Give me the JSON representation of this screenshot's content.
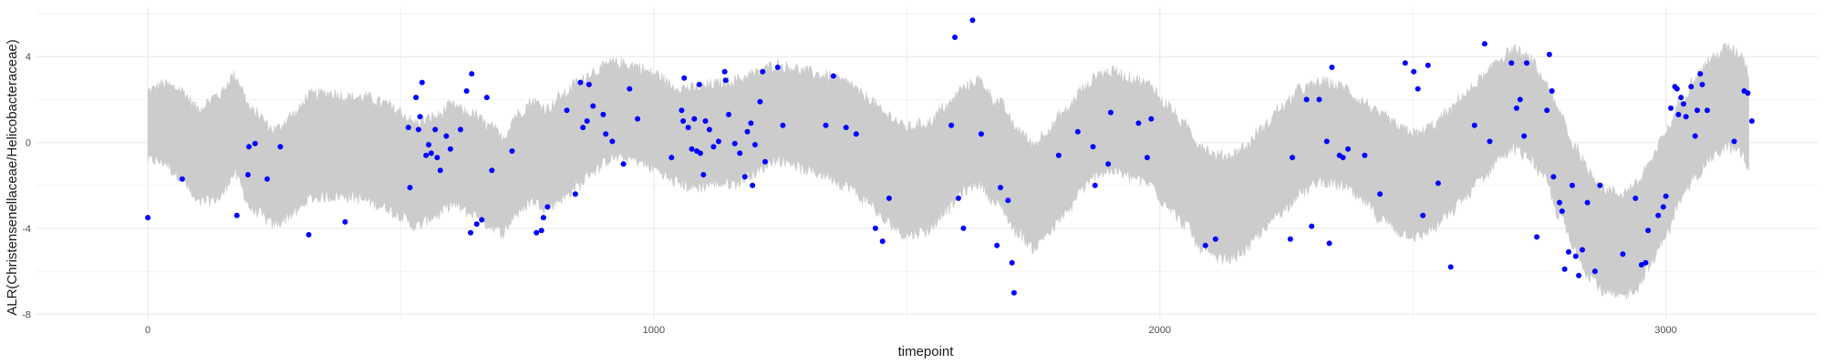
{
  "chart_data": {
    "type": "scatter",
    "title": "",
    "xlabel": "timepoint",
    "ylabel": "ALR(Christensenellaceae/Helicobacteraceae)",
    "xlim": [
      -220,
      3300
    ],
    "ylim": [
      -8.2,
      6.3
    ],
    "x_ticks": [
      0,
      1000,
      2000,
      3000
    ],
    "y_ticks": [
      -8,
      -4,
      0,
      4
    ],
    "grid": true,
    "legend": "none",
    "band": {
      "color": "#cccccc",
      "description_x": [
        0,
        30,
        60,
        100,
        140,
        170,
        210,
        250,
        290,
        320,
        360,
        400,
        430,
        470,
        490,
        530,
        570,
        600,
        640,
        680,
        700,
        730,
        760,
        790,
        820,
        850,
        880,
        920,
        960,
        1000,
        1040,
        1080,
        1120,
        1160,
        1200,
        1240,
        1270,
        1300,
        1340,
        1380,
        1420,
        1460,
        1500,
        1540,
        1580,
        1610,
        1640,
        1680,
        1720,
        1750,
        1780,
        1810,
        1850,
        1880,
        1910,
        1940,
        1980,
        2010,
        2050,
        2080,
        2110,
        2140,
        2170,
        2200,
        2240,
        2280,
        2320,
        2360,
        2400,
        2440,
        2480,
        2510,
        2540,
        2570,
        2600,
        2640,
        2670,
        2700,
        2730,
        2760,
        2790,
        2820,
        2850,
        2880,
        2910,
        2940,
        2970,
        3000,
        3030,
        3060,
        3090,
        3120,
        3150,
        3165
      ],
      "center": [
        0.8,
        0.9,
        0.5,
        -0.6,
        -0.2,
        0.8,
        -0.9,
        -1.6,
        -1.0,
        -0.2,
        -0.1,
        -0.2,
        -0.3,
        -0.6,
        -0.9,
        -1.5,
        -1.1,
        -0.6,
        -1.0,
        -1.6,
        -2.0,
        -1.0,
        -0.4,
        -0.7,
        -0.2,
        0.4,
        1.0,
        1.5,
        1.4,
        1.0,
        0.4,
        0.2,
        0.4,
        0.5,
        0.9,
        1.4,
        1.3,
        1.0,
        0.8,
        0.4,
        -0.3,
        -1.2,
        -1.8,
        -1.6,
        -0.7,
        0.1,
        0.5,
        -0.5,
        -1.8,
        -2.5,
        -1.8,
        -1.0,
        0.2,
        0.9,
        1.0,
        0.7,
        0.4,
        -0.5,
        -1.5,
        -2.5,
        -3.0,
        -3.0,
        -2.6,
        -1.8,
        -0.8,
        0.1,
        0.5,
        0.3,
        -0.4,
        -1.2,
        -1.8,
        -2.0,
        -1.6,
        -1.0,
        -0.2,
        0.7,
        1.6,
        2.0,
        1.6,
        0.6,
        -1.0,
        -2.6,
        -3.8,
        -4.6,
        -4.8,
        -4.4,
        -3.3,
        -1.9,
        -0.4,
        0.8,
        1.6,
        2.1,
        1.8,
        0.9
      ],
      "halfwidth": [
        1.6,
        1.8,
        2.0,
        2.2,
        2.4,
        2.3,
        2.3,
        2.2,
        2.3,
        2.4,
        2.4,
        2.3,
        2.4,
        2.4,
        2.4,
        2.4,
        2.3,
        2.3,
        2.3,
        2.3,
        2.2,
        2.3,
        2.3,
        2.3,
        2.4,
        2.4,
        2.3,
        2.2,
        2.2,
        2.2,
        2.2,
        2.3,
        2.3,
        2.4,
        2.3,
        2.2,
        2.2,
        2.3,
        2.3,
        2.4,
        2.4,
        2.5,
        2.5,
        2.5,
        2.4,
        2.4,
        2.4,
        2.4,
        2.4,
        2.4,
        2.4,
        2.4,
        2.3,
        2.3,
        2.3,
        2.3,
        2.3,
        2.3,
        2.3,
        2.4,
        2.4,
        2.4,
        2.4,
        2.4,
        2.4,
        2.4,
        2.3,
        2.3,
        2.3,
        2.4,
        2.4,
        2.4,
        2.4,
        2.4,
        2.4,
        2.3,
        2.3,
        2.3,
        2.3,
        2.3,
        2.4,
        2.4,
        2.4,
        2.4,
        2.4,
        2.4,
        2.4,
        2.4,
        2.3,
        2.3,
        2.3,
        2.3,
        2.3,
        2.3
      ]
    },
    "points_color": "#0000ff",
    "points": [
      [
        0,
        -3.5
      ],
      [
        68,
        -1.7
      ],
      [
        176,
        -3.4
      ],
      [
        200,
        -0.2
      ],
      [
        198,
        -1.5
      ],
      [
        212,
        -0.05
      ],
      [
        236,
        -1.7
      ],
      [
        262,
        -0.2
      ],
      [
        318,
        -4.3
      ],
      [
        390,
        -3.7
      ],
      [
        515,
        0.7
      ],
      [
        518,
        -2.1
      ],
      [
        530,
        2.1
      ],
      [
        535,
        0.6
      ],
      [
        538,
        1.2
      ],
      [
        542,
        2.8
      ],
      [
        550,
        -0.6
      ],
      [
        555,
        -0.1
      ],
      [
        560,
        -0.5
      ],
      [
        568,
        0.6
      ],
      [
        572,
        -0.7
      ],
      [
        578,
        -1.3
      ],
      [
        590,
        0.3
      ],
      [
        598,
        -0.3
      ],
      [
        618,
        0.6
      ],
      [
        630,
        2.4
      ],
      [
        638,
        -4.2
      ],
      [
        640,
        3.2
      ],
      [
        650,
        -3.8
      ],
      [
        660,
        -3.6
      ],
      [
        670,
        2.1
      ],
      [
        680,
        -1.3
      ],
      [
        720,
        -0.4
      ],
      [
        768,
        -4.2
      ],
      [
        778,
        -4.1
      ],
      [
        782,
        -3.5
      ],
      [
        790,
        -3.0
      ],
      [
        828,
        1.5
      ],
      [
        845,
        -2.4
      ],
      [
        855,
        2.8
      ],
      [
        860,
        0.7
      ],
      [
        868,
        1.0
      ],
      [
        872,
        2.7
      ],
      [
        880,
        1.7
      ],
      [
        900,
        1.3
      ],
      [
        905,
        0.4
      ],
      [
        918,
        0.05
      ],
      [
        940,
        -1.0
      ],
      [
        952,
        2.5
      ],
      [
        968,
        1.1
      ],
      [
        1035,
        -0.7
      ],
      [
        1055,
        1.5
      ],
      [
        1058,
        1.0
      ],
      [
        1060,
        3.0
      ],
      [
        1068,
        0.7
      ],
      [
        1075,
        -0.3
      ],
      [
        1080,
        1.1
      ],
      [
        1085,
        -0.4
      ],
      [
        1090,
        2.7
      ],
      [
        1092,
        -0.5
      ],
      [
        1098,
        -1.5
      ],
      [
        1102,
        1.0
      ],
      [
        1110,
        0.6
      ],
      [
        1118,
        -0.2
      ],
      [
        1128,
        0.05
      ],
      [
        1140,
        3.3
      ],
      [
        1142,
        2.9
      ],
      [
        1148,
        1.3
      ],
      [
        1160,
        -0.05
      ],
      [
        1170,
        -0.5
      ],
      [
        1180,
        -1.6
      ],
      [
        1185,
        0.5
      ],
      [
        1192,
        0.9
      ],
      [
        1195,
        -2.0
      ],
      [
        1200,
        -0.1
      ],
      [
        1210,
        1.9
      ],
      [
        1215,
        3.3
      ],
      [
        1220,
        -0.9
      ],
      [
        1245,
        3.5
      ],
      [
        1255,
        0.8
      ],
      [
        1340,
        0.8
      ],
      [
        1355,
        3.1
      ],
      [
        1380,
        0.7
      ],
      [
        1400,
        0.4
      ],
      [
        1438,
        -4.0
      ],
      [
        1452,
        -4.6
      ],
      [
        1465,
        -2.6
      ],
      [
        1588,
        0.8
      ],
      [
        1595,
        4.9
      ],
      [
        1602,
        -2.6
      ],
      [
        1612,
        -4.0
      ],
      [
        1630,
        5.7
      ],
      [
        1647,
        0.4
      ],
      [
        1678,
        -4.8
      ],
      [
        1685,
        -2.1
      ],
      [
        1700,
        -2.7
      ],
      [
        1708,
        -5.6
      ],
      [
        1712,
        -7.0
      ],
      [
        1800,
        -0.6
      ],
      [
        1838,
        0.5
      ],
      [
        1868,
        -0.2
      ],
      [
        1872,
        -2.0
      ],
      [
        1898,
        -1.0
      ],
      [
        1903,
        1.4
      ],
      [
        1958,
        0.9
      ],
      [
        1975,
        -0.7
      ],
      [
        1983,
        1.1
      ],
      [
        2090,
        -4.8
      ],
      [
        2110,
        -4.5
      ],
      [
        2258,
        -4.5
      ],
      [
        2262,
        -0.7
      ],
      [
        2290,
        2.0
      ],
      [
        2300,
        -3.9
      ],
      [
        2315,
        2.0
      ],
      [
        2330,
        0.05
      ],
      [
        2335,
        -4.7
      ],
      [
        2340,
        3.5
      ],
      [
        2355,
        -0.6
      ],
      [
        2362,
        -0.7
      ],
      [
        2372,
        -0.3
      ],
      [
        2405,
        -0.6
      ],
      [
        2435,
        -2.4
      ],
      [
        2485,
        3.7
      ],
      [
        2502,
        3.3
      ],
      [
        2510,
        2.5
      ],
      [
        2520,
        -3.4
      ],
      [
        2530,
        3.6
      ],
      [
        2550,
        -1.9
      ],
      [
        2575,
        -5.8
      ],
      [
        2622,
        0.8
      ],
      [
        2642,
        4.6
      ],
      [
        2652,
        0.05
      ],
      [
        2695,
        3.7
      ],
      [
        2705,
        1.6
      ],
      [
        2712,
        2.0
      ],
      [
        2720,
        0.3
      ],
      [
        2725,
        3.7
      ],
      [
        2745,
        -4.4
      ],
      [
        2765,
        1.5
      ],
      [
        2770,
        4.1
      ],
      [
        2775,
        2.4
      ],
      [
        2778,
        -1.6
      ],
      [
        2790,
        -2.8
      ],
      [
        2795,
        -3.2
      ],
      [
        2800,
        -5.9
      ],
      [
        2808,
        -5.1
      ],
      [
        2815,
        -2.0
      ],
      [
        2822,
        -5.3
      ],
      [
        2828,
        -6.2
      ],
      [
        2835,
        -5.0
      ],
      [
        2845,
        -2.8
      ],
      [
        2860,
        -6.0
      ],
      [
        2870,
        -2.0
      ],
      [
        2915,
        -5.2
      ],
      [
        2940,
        -2.6
      ],
      [
        2952,
        -5.7
      ],
      [
        2960,
        -5.6
      ],
      [
        2965,
        -4.1
      ],
      [
        2985,
        -3.4
      ],
      [
        2995,
        -3.0
      ],
      [
        3000,
        -2.5
      ],
      [
        3010,
        1.6
      ],
      [
        3018,
        2.6
      ],
      [
        3022,
        2.5
      ],
      [
        3025,
        1.3
      ],
      [
        3030,
        2.1
      ],
      [
        3035,
        1.8
      ],
      [
        3040,
        1.2
      ],
      [
        3050,
        2.6
      ],
      [
        3058,
        0.3
      ],
      [
        3062,
        1.5
      ],
      [
        3068,
        3.2
      ],
      [
        3072,
        2.7
      ],
      [
        3082,
        1.5
      ],
      [
        3135,
        0.05
      ],
      [
        3155,
        2.4
      ],
      [
        3162,
        2.3
      ],
      [
        3170,
        1.0
      ]
    ]
  }
}
